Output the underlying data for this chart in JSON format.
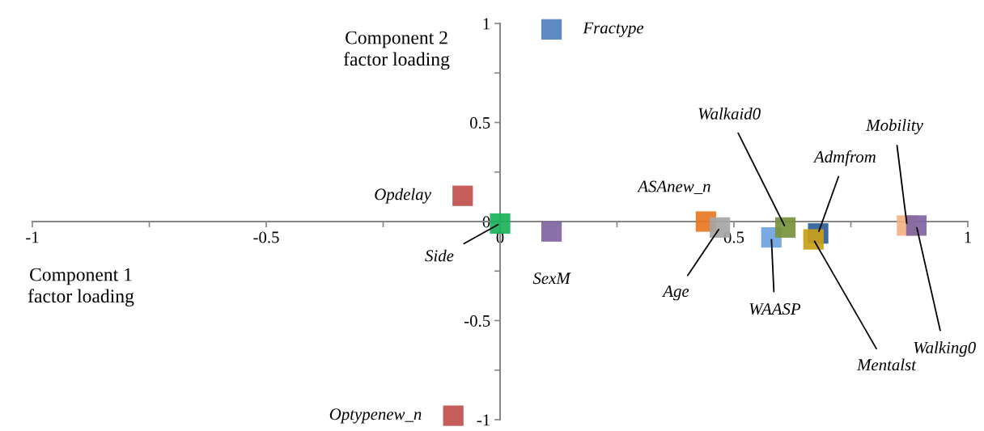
{
  "chart_data": {
    "type": "scatter",
    "xlabel": "Component 1\nfactor loading",
    "ylabel": "Component 2\nfactor loading",
    "marker": "square",
    "legend": false,
    "grid": false,
    "xlim": [
      -1,
      1
    ],
    "ylim": [
      -1,
      1
    ],
    "xticks": [
      -1,
      {
        "value": -0.75,
        "label": null
      },
      -0.5,
      {
        "value": -0.25,
        "label": null
      },
      0,
      {
        "value": 0.25,
        "label": null
      },
      0.5,
      {
        "value": 0.75,
        "label": null
      },
      1
    ],
    "yticks": [
      -1,
      {
        "value": -0.75,
        "label": null
      },
      -0.5,
      {
        "value": -0.25,
        "label": null
      },
      0,
      {
        "value": 0.25,
        "label": null
      },
      0.5,
      {
        "value": 0.75,
        "label": null
      },
      1
    ],
    "series": [
      {
        "name": "Fractype",
        "color": "#4f81bd",
        "x": [
          0.11
        ],
        "values": [
          0.97
        ]
      },
      {
        "name": "Opdelay",
        "color": "#c0504d",
        "x": [
          -0.08
        ],
        "values": [
          0.13
        ]
      },
      {
        "name": "Optypenew_n",
        "color": "#c0504d",
        "x": [
          -0.1
        ],
        "values": [
          -0.98
        ]
      },
      {
        "name": "Side",
        "color": "#1ab25a",
        "x": [
          0.0
        ],
        "values": [
          -0.01
        ]
      },
      {
        "name": "SexM",
        "color": "#8064a2",
        "x": [
          0.11
        ],
        "values": [
          -0.05
        ]
      },
      {
        "name": "ASAnew_n",
        "color": "#e87722",
        "x": [
          0.44
        ],
        "values": [
          0.0
        ]
      },
      {
        "name": "Age",
        "color": "#a5a5a5",
        "x": [
          0.47
        ],
        "values": [
          -0.03
        ]
      },
      {
        "name": "WAASP",
        "color": "#6ea3e0",
        "x": [
          0.58
        ],
        "values": [
          -0.08
        ]
      },
      {
        "name": "Walkaid0",
        "color": "#77933c",
        "x": [
          0.61
        ],
        "values": [
          -0.03
        ]
      },
      {
        "name": "Admfrom",
        "color": "#2c5d9a",
        "x": [
          0.68
        ],
        "values": [
          -0.06
        ]
      },
      {
        "name": "Mentalst",
        "color": "#c9a017",
        "x": [
          0.67
        ],
        "values": [
          -0.09
        ]
      },
      {
        "name": "Mobility",
        "color": "#f4b183",
        "x": [
          0.87
        ],
        "values": [
          -0.02
        ]
      },
      {
        "name": "Walking0",
        "color": "#8064a2",
        "x": [
          0.89
        ],
        "values": [
          -0.02
        ]
      }
    ]
  }
}
